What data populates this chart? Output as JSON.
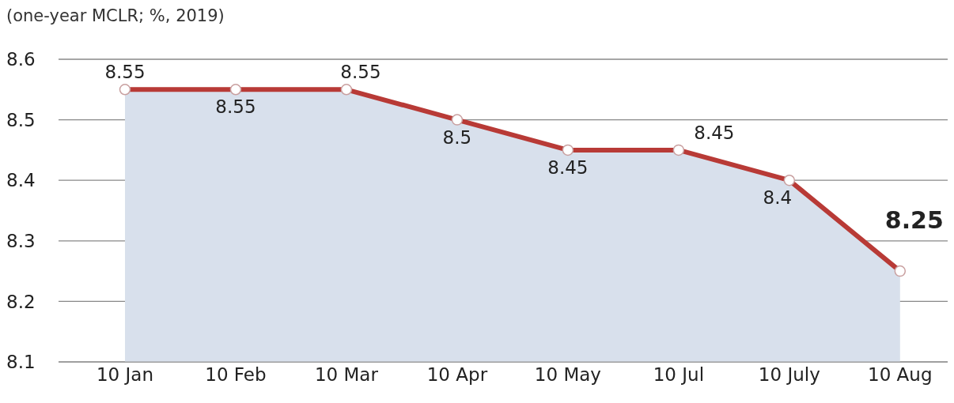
{
  "chart_data": {
    "type": "area",
    "subtitle": "(one-year MCLR; %, 2019)",
    "categories": [
      "10 Jan",
      "10 Feb",
      "10 Mar",
      "10 Apr",
      "10 May",
      "10 Jul",
      "10 July",
      "10 Aug"
    ],
    "series": [
      {
        "color": "#b83a36",
        "values": [
          8.55,
          8.55,
          8.55,
          8.5,
          8.45,
          8.45,
          8.4,
          8.25
        ]
      }
    ],
    "ylim": [
      8.1,
      8.6
    ],
    "yticks": [
      8.1,
      8.2,
      8.3,
      8.4,
      8.5,
      8.6
    ],
    "grid": "y",
    "data_labels": true,
    "marker": "circle",
    "line_style": "solid"
  }
}
